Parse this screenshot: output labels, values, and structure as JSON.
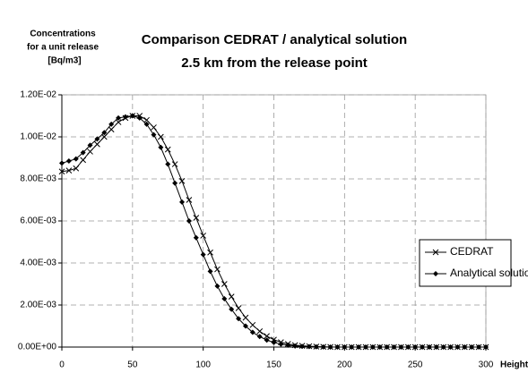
{
  "chart_data": {
    "type": "line",
    "title": [
      "Comparison CEDRAT / analytical solution",
      "2.5 km from the release point"
    ],
    "ylabel": [
      "Concentrations",
      "for a unit release",
      "[Bq/m3]"
    ],
    "xlabel": "Height (m)",
    "x": [
      0,
      5,
      10,
      15,
      20,
      25,
      30,
      35,
      40,
      45,
      50,
      55,
      60,
      65,
      70,
      75,
      80,
      85,
      90,
      95,
      100,
      105,
      110,
      115,
      120,
      125,
      130,
      135,
      140,
      145,
      150,
      155,
      160,
      165,
      170,
      175,
      180,
      185,
      190,
      195,
      200,
      205,
      210,
      215,
      220,
      225,
      230,
      235,
      240,
      245,
      250,
      255,
      260,
      265,
      270,
      275,
      280,
      285,
      290,
      295,
      300
    ],
    "series": [
      {
        "name": "CEDRAT",
        "color": "#000000",
        "marker": "x",
        "values": [
          0.00835,
          0.0084,
          0.0085,
          0.0089,
          0.0093,
          0.00965,
          0.01,
          0.01035,
          0.0107,
          0.0109,
          0.011,
          0.011,
          0.0108,
          0.01045,
          0.01,
          0.0094,
          0.0087,
          0.0079,
          0.007,
          0.00615,
          0.0053,
          0.0045,
          0.0037,
          0.003,
          0.0024,
          0.00185,
          0.0014,
          0.00105,
          0.00075,
          0.00052,
          0.00035,
          0.00023,
          0.00015,
          9e-05,
          6e-05,
          4e-05,
          2e-05,
          1e-05,
          5e-06,
          0,
          0,
          0,
          0,
          0,
          0,
          0,
          0,
          0,
          0,
          0,
          0,
          0,
          0,
          0,
          0,
          0,
          0,
          0,
          0,
          0,
          0
        ]
      },
      {
        "name": "Analytical solution",
        "color": "#000000",
        "marker": "diamond",
        "values": [
          0.00875,
          0.00885,
          0.00895,
          0.00925,
          0.0096,
          0.0099,
          0.0102,
          0.0106,
          0.0109,
          0.01095,
          0.011,
          0.0109,
          0.0106,
          0.0101,
          0.0095,
          0.0087,
          0.0078,
          0.0069,
          0.006,
          0.0052,
          0.0044,
          0.0036,
          0.0029,
          0.0023,
          0.0018,
          0.00135,
          0.001,
          0.0007,
          0.0005,
          0.00033,
          0.00022,
          0.00014,
          9e-05,
          5e-05,
          3e-05,
          2e-05,
          1e-05,
          5e-06,
          0,
          0,
          0,
          0,
          0,
          0,
          0,
          0,
          0,
          0,
          0,
          0,
          0,
          0,
          0,
          0,
          0,
          0,
          0,
          0,
          0,
          0,
          0
        ]
      }
    ],
    "xlim": [
      0,
      300
    ],
    "xticks": [
      0,
      50,
      100,
      150,
      200,
      250,
      300
    ],
    "ylim": [
      0,
      0.012
    ],
    "yticks": [
      {
        "value": 0,
        "label": "0.00E+00"
      },
      {
        "value": 0.002,
        "label": "2.00E-03"
      },
      {
        "value": 0.004,
        "label": "4.00E-03"
      },
      {
        "value": 0.006,
        "label": "6.00E-03"
      },
      {
        "value": 0.008,
        "label": "8.00E-03"
      },
      {
        "value": 0.01,
        "label": "1.00E-02"
      },
      {
        "value": 0.012,
        "label": "1.20E-02"
      }
    ],
    "grid": true,
    "legend": "right"
  }
}
